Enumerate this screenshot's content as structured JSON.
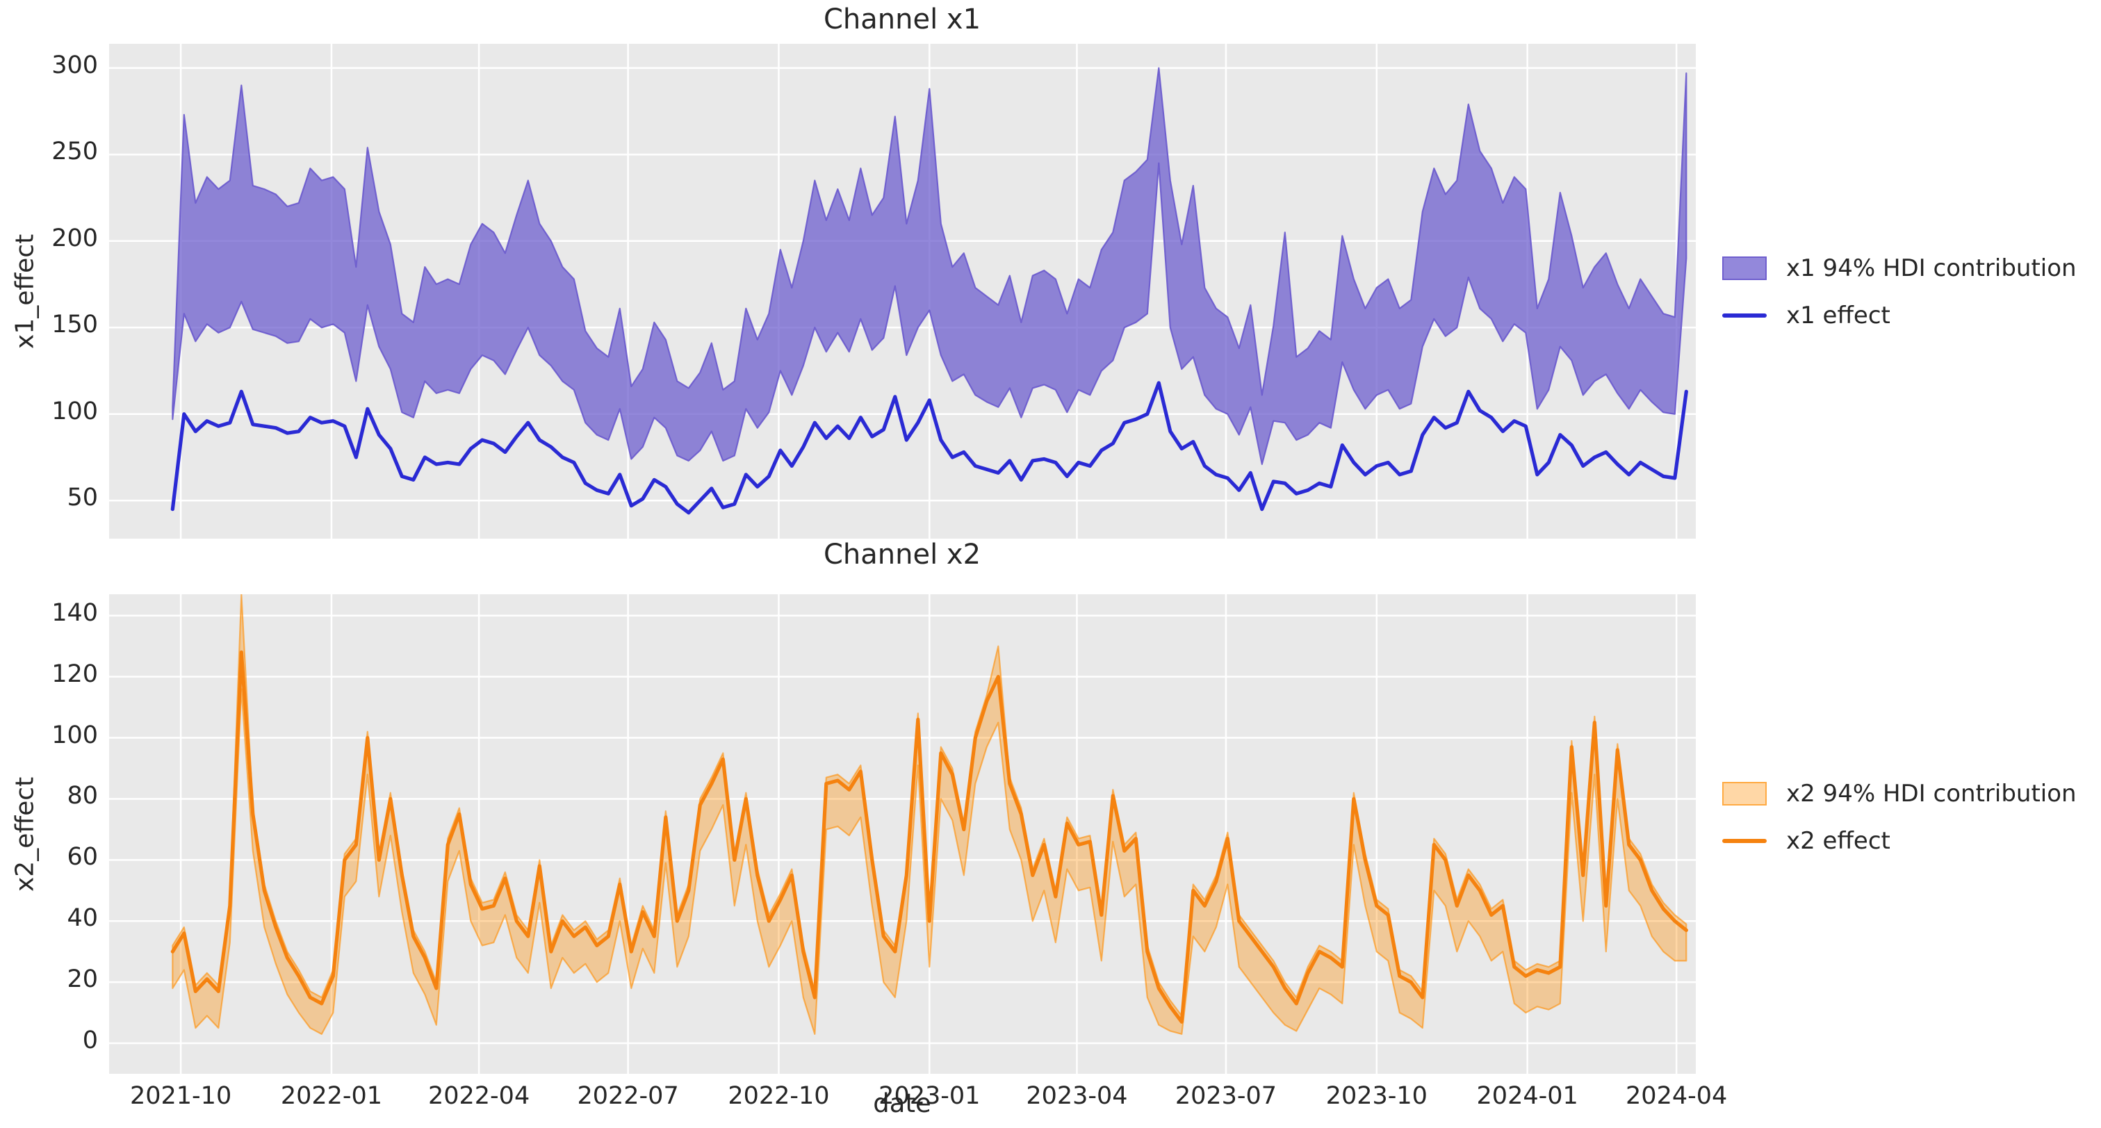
{
  "figure": {
    "background": "#ffffff",
    "panel_background": "#e9e9e9",
    "grid_color": "#ffffff",
    "text_color": "#262626"
  },
  "xlabel": "date",
  "xticks": [
    "2021-10",
    "2022-01",
    "2022-04",
    "2022-07",
    "2022-10",
    "2023-01",
    "2023-04",
    "2023-07",
    "2023-10",
    "2024-01",
    "2024-04"
  ],
  "dates": [
    "2021-09-26",
    "2021-10-03",
    "2021-10-10",
    "2021-10-17",
    "2021-10-24",
    "2021-10-31",
    "2021-11-07",
    "2021-11-14",
    "2021-11-21",
    "2021-11-28",
    "2021-12-05",
    "2021-12-12",
    "2021-12-19",
    "2021-12-26",
    "2022-01-02",
    "2022-01-09",
    "2022-01-16",
    "2022-01-23",
    "2022-01-30",
    "2022-02-06",
    "2022-02-13",
    "2022-02-20",
    "2022-02-27",
    "2022-03-06",
    "2022-03-13",
    "2022-03-20",
    "2022-03-27",
    "2022-04-03",
    "2022-04-10",
    "2022-04-17",
    "2022-04-24",
    "2022-05-01",
    "2022-05-08",
    "2022-05-15",
    "2022-05-22",
    "2022-05-29",
    "2022-06-05",
    "2022-06-12",
    "2022-06-19",
    "2022-06-26",
    "2022-07-03",
    "2022-07-10",
    "2022-07-17",
    "2022-07-24",
    "2022-07-31",
    "2022-08-07",
    "2022-08-14",
    "2022-08-21",
    "2022-08-28",
    "2022-09-04",
    "2022-09-11",
    "2022-09-18",
    "2022-09-25",
    "2022-10-02",
    "2022-10-09",
    "2022-10-16",
    "2022-10-23",
    "2022-10-30",
    "2022-11-06",
    "2022-11-13",
    "2022-11-20",
    "2022-11-27",
    "2022-12-04",
    "2022-12-11",
    "2022-12-18",
    "2022-12-25",
    "2023-01-01",
    "2023-01-08",
    "2023-01-15",
    "2023-01-22",
    "2023-01-29",
    "2023-02-05",
    "2023-02-12",
    "2023-02-19",
    "2023-02-26",
    "2023-03-05",
    "2023-03-12",
    "2023-03-19",
    "2023-03-26",
    "2023-04-02",
    "2023-04-09",
    "2023-04-16",
    "2023-04-23",
    "2023-04-30",
    "2023-05-07",
    "2023-05-14",
    "2023-05-21",
    "2023-05-28",
    "2023-06-04",
    "2023-06-11",
    "2023-06-18",
    "2023-06-25",
    "2023-07-02",
    "2023-07-09",
    "2023-07-16",
    "2023-07-23",
    "2023-07-30",
    "2023-08-06",
    "2023-08-13",
    "2023-08-20",
    "2023-08-27",
    "2023-09-03",
    "2023-09-10",
    "2023-09-17",
    "2023-09-24",
    "2023-10-01",
    "2023-10-08",
    "2023-10-15",
    "2023-10-22",
    "2023-10-29",
    "2023-11-05",
    "2023-11-12",
    "2023-11-19",
    "2023-11-26",
    "2023-12-03",
    "2023-12-10",
    "2023-12-17",
    "2023-12-24",
    "2023-12-31",
    "2024-01-07",
    "2024-01-14",
    "2024-01-21",
    "2024-01-28",
    "2024-02-04",
    "2024-02-11",
    "2024-02-18",
    "2024-02-25",
    "2024-03-03",
    "2024-03-10",
    "2024-03-17",
    "2024-03-24",
    "2024-03-31",
    "2024-04-07"
  ],
  "chart_data": [
    {
      "type": "area",
      "title": "Channel x1",
      "ylabel": "x1_effect",
      "xlabel": "date",
      "ylim": [
        28,
        314
      ],
      "yticks": [
        50,
        100,
        150,
        200,
        250,
        300
      ],
      "grid": true,
      "legend_position": "right",
      "band": {
        "label": "x1 94% HDI contribution",
        "fill": "rgba(106,90,205,0.72)",
        "edge": "rgba(106,90,205,0.92)",
        "lower": [
          97,
          158,
          142,
          152,
          147,
          150,
          165,
          149,
          147,
          145,
          141,
          142,
          155,
          150,
          152,
          147,
          119,
          163,
          139,
          126,
          101,
          98,
          119,
          112,
          114,
          112,
          126,
          134,
          131,
          123,
          137,
          150,
          134,
          128,
          119,
          114,
          95,
          88,
          85,
          103,
          74,
          81,
          98,
          92,
          76,
          73,
          79,
          90,
          73,
          76,
          103,
          92,
          101,
          125,
          111,
          128,
          150,
          136,
          147,
          136,
          155,
          137,
          144,
          174,
          134,
          150,
          160,
          134,
          119,
          123,
          111,
          107,
          104,
          115,
          98,
          115,
          117,
          114,
          101,
          114,
          111,
          125,
          131,
          150,
          153,
          158,
          245,
          150,
          126,
          133,
          111,
          103,
          100,
          88,
          104,
          71,
          96,
          95,
          85,
          88,
          95,
          92,
          130,
          114,
          103,
          111,
          114,
          103,
          106,
          139,
          155,
          145,
          150,
          179,
          161,
          155,
          142,
          152,
          147,
          103,
          114,
          139,
          131,
          111,
          119,
          123,
          112,
          103,
          114,
          107,
          101,
          100,
          190
        ],
        "upper": [
          104,
          273,
          222,
          237,
          230,
          235,
          290,
          232,
          230,
          227,
          220,
          222,
          242,
          235,
          237,
          230,
          185,
          254,
          217,
          198,
          158,
          153,
          185,
          175,
          178,
          175,
          198,
          210,
          205,
          193,
          215,
          235,
          210,
          200,
          185,
          178,
          148,
          138,
          133,
          161,
          116,
          126,
          153,
          143,
          119,
          115,
          124,
          141,
          114,
          119,
          161,
          143,
          158,
          195,
          173,
          200,
          235,
          212,
          230,
          212,
          242,
          215,
          225,
          272,
          210,
          235,
          288,
          210,
          185,
          193,
          173,
          168,
          163,
          180,
          153,
          180,
          183,
          178,
          158,
          178,
          173,
          195,
          205,
          235,
          240,
          247,
          300,
          235,
          198,
          232,
          173,
          161,
          156,
          138,
          163,
          111,
          151,
          205,
          133,
          138,
          148,
          143,
          203,
          178,
          161,
          173,
          178,
          161,
          166,
          217,
          242,
          227,
          235,
          279,
          252,
          242,
          222,
          237,
          230,
          161,
          178,
          228,
          203,
          173,
          185,
          193,
          175,
          161,
          178,
          168,
          158,
          156,
          297
        ]
      },
      "line": {
        "label": "x1 effect",
        "color": "#2a2ad4",
        "values": [
          45,
          100,
          90,
          96,
          93,
          95,
          113,
          94,
          93,
          92,
          89,
          90,
          98,
          95,
          96,
          93,
          75,
          103,
          88,
          80,
          64,
          62,
          75,
          71,
          72,
          71,
          80,
          85,
          83,
          78,
          87,
          95,
          85,
          81,
          75,
          72,
          60,
          56,
          54,
          65,
          47,
          51,
          62,
          58,
          48,
          43,
          50,
          57,
          46,
          48,
          65,
          58,
          64,
          79,
          70,
          81,
          95,
          86,
          93,
          86,
          98,
          87,
          91,
          110,
          85,
          95,
          108,
          85,
          75,
          78,
          70,
          68,
          66,
          73,
          62,
          73,
          74,
          72,
          64,
          72,
          70,
          79,
          83,
          95,
          97,
          100,
          118,
          90,
          80,
          84,
          70,
          65,
          63,
          56,
          66,
          45,
          61,
          60,
          54,
          56,
          60,
          58,
          82,
          72,
          65,
          70,
          72,
          65,
          67,
          88,
          98,
          92,
          95,
          113,
          102,
          98,
          90,
          96,
          93,
          65,
          72,
          88,
          82,
          70,
          75,
          78,
          71,
          65,
          72,
          68,
          64,
          63,
          113
        ]
      }
    },
    {
      "type": "area",
      "title": "Channel x2",
      "ylabel": "x2_effect",
      "xlabel": "date",
      "ylim": [
        -10,
        147
      ],
      "yticks": [
        0,
        20,
        40,
        60,
        80,
        100,
        120,
        140
      ],
      "grid": true,
      "legend_position": "right",
      "band": {
        "label": "x2 94% HDI contribution",
        "fill": "rgba(255,140,0,0.35)",
        "edge": "rgba(255,140,0,0.6)",
        "lower": [
          18,
          24,
          5,
          9,
          5,
          33,
          116,
          63,
          38,
          26,
          16,
          10,
          5,
          3,
          10,
          48,
          53,
          88,
          48,
          68,
          43,
          23,
          16,
          6,
          53,
          63,
          40,
          32,
          33,
          42,
          28,
          23,
          46,
          18,
          28,
          23,
          26,
          20,
          23,
          40,
          18,
          31,
          23,
          59,
          25,
          35,
          63,
          70,
          78,
          45,
          65,
          40,
          25,
          32,
          40,
          15,
          3,
          70,
          71,
          68,
          74,
          45,
          20,
          15,
          40,
          91,
          25,
          80,
          73,
          55,
          85,
          97,
          105,
          70,
          60,
          40,
          50,
          33,
          57,
          50,
          51,
          27,
          66,
          48,
          52,
          15,
          6,
          4,
          3,
          35,
          30,
          38,
          52,
          25,
          20,
          15,
          10,
          6,
          4,
          11,
          18,
          16,
          13,
          65,
          45,
          30,
          27,
          10,
          8,
          5,
          50,
          45,
          30,
          40,
          35,
          27,
          30,
          13,
          10,
          12,
          11,
          13,
          82,
          40,
          88,
          30,
          80,
          50,
          45,
          35,
          30,
          27,
          27
        ],
        "upper": [
          32,
          38,
          19,
          23,
          19,
          47,
          147,
          77,
          52,
          40,
          30,
          24,
          17,
          15,
          24,
          62,
          67,
          102,
          62,
          82,
          57,
          37,
          30,
          20,
          67,
          77,
          54,
          46,
          47,
          56,
          42,
          37,
          60,
          32,
          42,
          37,
          40,
          34,
          37,
          54,
          32,
          45,
          37,
          76,
          42,
          52,
          80,
          87,
          95,
          62,
          82,
          57,
          42,
          49,
          57,
          32,
          17,
          87,
          88,
          85,
          91,
          62,
          37,
          32,
          57,
          108,
          42,
          97,
          90,
          72,
          102,
          114,
          130,
          87,
          77,
          57,
          67,
          50,
          74,
          67,
          68,
          44,
          83,
          65,
          69,
          32,
          20,
          14,
          9,
          52,
          47,
          55,
          69,
          42,
          37,
          32,
          27,
          20,
          15,
          25,
          32,
          30,
          27,
          82,
          62,
          47,
          44,
          24,
          22,
          17,
          67,
          62,
          47,
          57,
          52,
          44,
          47,
          27,
          24,
          26,
          25,
          27,
          99,
          57,
          107,
          47,
          98,
          67,
          62,
          52,
          46,
          42,
          39
        ]
      },
      "line": {
        "label": "x2 effect",
        "color": "#f5820f",
        "values": [
          30,
          36,
          17,
          21,
          17,
          45,
          128,
          75,
          50,
          38,
          28,
          22,
          15,
          13,
          22,
          60,
          65,
          100,
          60,
          80,
          55,
          35,
          28,
          18,
          65,
          75,
          52,
          44,
          45,
          54,
          40,
          35,
          58,
          30,
          40,
          35,
          38,
          32,
          35,
          52,
          30,
          43,
          35,
          74,
          40,
          50,
          78,
          85,
          93,
          60,
          80,
          55,
          40,
          47,
          55,
          30,
          15,
          85,
          86,
          83,
          89,
          60,
          35,
          30,
          55,
          106,
          40,
          95,
          88,
          70,
          100,
          112,
          120,
          85,
          75,
          55,
          65,
          48,
          72,
          65,
          66,
          42,
          81,
          63,
          67,
          30,
          18,
          12,
          7,
          50,
          45,
          53,
          67,
          40,
          35,
          30,
          25,
          18,
          13,
          23,
          30,
          28,
          25,
          80,
          60,
          45,
          42,
          22,
          20,
          15,
          65,
          60,
          45,
          55,
          50,
          42,
          45,
          25,
          22,
          24,
          23,
          25,
          97,
          55,
          105,
          45,
          96,
          65,
          60,
          50,
          44,
          40,
          37
        ]
      }
    }
  ]
}
